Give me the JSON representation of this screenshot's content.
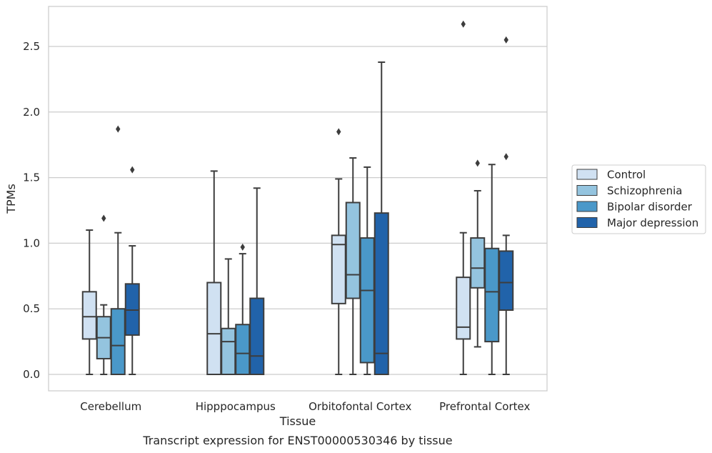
{
  "caption": "Transcript expression for ENST00000530346 by tissue",
  "chart_data": {
    "type": "box",
    "title": "",
    "xlabel": "Tissue",
    "ylabel": "TPMs",
    "ylim": [
      -0.13,
      2.82
    ],
    "yticks": [
      0.0,
      0.5,
      1.0,
      1.5,
      2.0,
      2.5
    ],
    "ytick_labels": [
      "0.0",
      "0.5",
      "1.0",
      "1.5",
      "2.0",
      "2.5"
    ],
    "grid": "horizontal",
    "legend_position": "right",
    "categories": [
      "Cerebellum",
      "Hipppocampus",
      "Orbitofontal Cortex",
      "Prefrontal Cortex"
    ],
    "series": [
      {
        "name": "Control",
        "color": "#d0e1f2",
        "boxes": [
          {
            "whislo": 0.0,
            "q1": 0.27,
            "med": 0.44,
            "q3": 0.63,
            "whishi": 1.1,
            "fliers": []
          },
          {
            "whislo": 0.0,
            "q1": 0.0,
            "med": 0.31,
            "q3": 0.7,
            "whishi": 1.55,
            "fliers": []
          },
          {
            "whislo": 0.0,
            "q1": 0.54,
            "med": 0.99,
            "q3": 1.06,
            "whishi": 1.49,
            "fliers": [
              1.85
            ]
          },
          {
            "whislo": 0.0,
            "q1": 0.27,
            "med": 0.36,
            "q3": 0.74,
            "whishi": 1.08,
            "fliers": [
              2.67
            ]
          }
        ]
      },
      {
        "name": "Schizophrenia",
        "color": "#94c4df",
        "boxes": [
          {
            "whislo": 0.0,
            "q1": 0.12,
            "med": 0.28,
            "q3": 0.44,
            "whishi": 0.53,
            "fliers": [
              1.19
            ]
          },
          {
            "whislo": 0.0,
            "q1": 0.0,
            "med": 0.25,
            "q3": 0.35,
            "whishi": 0.88,
            "fliers": []
          },
          {
            "whislo": 0.0,
            "q1": 0.58,
            "med": 0.76,
            "q3": 1.31,
            "whishi": 1.65,
            "fliers": []
          },
          {
            "whislo": 0.21,
            "q1": 0.66,
            "med": 0.81,
            "q3": 1.04,
            "whishi": 1.4,
            "fliers": [
              1.61
            ]
          }
        ]
      },
      {
        "name": "Bipolar disorder",
        "color": "#4a98c9",
        "boxes": [
          {
            "whislo": 0.0,
            "q1": 0.0,
            "med": 0.22,
            "q3": 0.5,
            "whishi": 1.08,
            "fliers": [
              1.87
            ]
          },
          {
            "whislo": 0.0,
            "q1": 0.0,
            "med": 0.16,
            "q3": 0.38,
            "whishi": 0.92,
            "fliers": [
              0.97
            ]
          },
          {
            "whislo": 0.0,
            "q1": 0.09,
            "med": 0.64,
            "q3": 1.04,
            "whishi": 1.58,
            "fliers": []
          },
          {
            "whislo": 0.0,
            "q1": 0.25,
            "med": 0.63,
            "q3": 0.96,
            "whishi": 1.6,
            "fliers": []
          }
        ]
      },
      {
        "name": "Major depression",
        "color": "#2163aa",
        "boxes": [
          {
            "whislo": 0.0,
            "q1": 0.3,
            "med": 0.49,
            "q3": 0.69,
            "whishi": 0.98,
            "fliers": [
              1.56
            ]
          },
          {
            "whislo": 0.0,
            "q1": 0.0,
            "med": 0.14,
            "q3": 0.58,
            "whishi": 1.42,
            "fliers": []
          },
          {
            "whislo": 0.0,
            "q1": 0.0,
            "med": 0.16,
            "q3": 1.23,
            "whishi": 2.38,
            "fliers": []
          },
          {
            "whislo": 0.0,
            "q1": 0.49,
            "med": 0.7,
            "q3": 0.94,
            "whishi": 1.06,
            "fliers": [
              1.66,
              2.55
            ]
          }
        ]
      }
    ]
  }
}
